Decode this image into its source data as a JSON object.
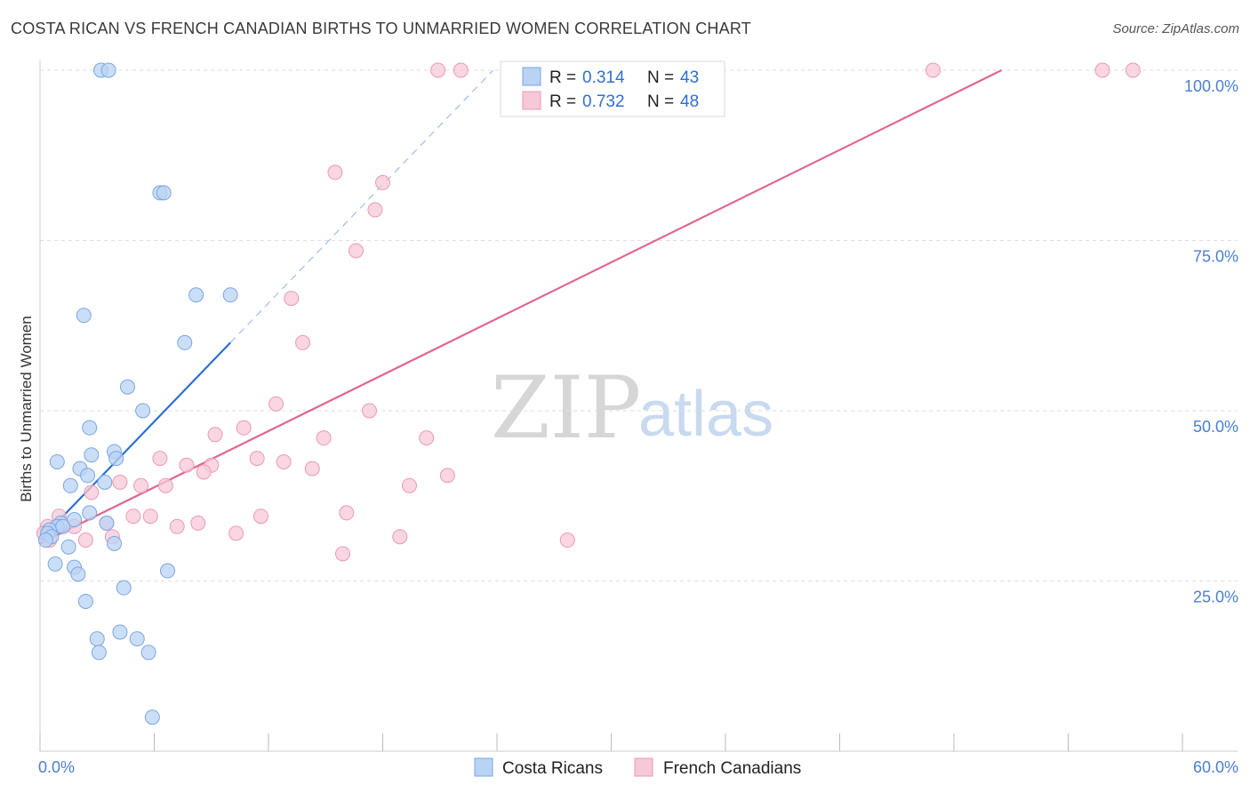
{
  "title": "COSTA RICAN VS FRENCH CANADIAN BIRTHS TO UNMARRIED WOMEN CORRELATION CHART",
  "source": "Source: ZipAtlas.com",
  "watermark": {
    "zip": "ZIP",
    "atlas": "atlas"
  },
  "colors": {
    "blue_fill": "#b9d3f5",
    "blue_stroke": "#7aa6e0",
    "blue_line": "#2c6fd1",
    "pink_fill": "#f7c8d7",
    "pink_stroke": "#e99ab5",
    "pink_line": "#e06690",
    "grid": "#dddddd",
    "axis_tick_text": "#4a7fd0"
  },
  "legend": {
    "rows": [
      {
        "r_label": "R =",
        "r_value": "0.314",
        "n_label": "N =",
        "n_value": "43",
        "series": "Costa Ricans"
      },
      {
        "r_label": "R =",
        "r_value": "0.732",
        "n_label": "N =",
        "n_value": "48",
        "series": "French Canadians"
      }
    ]
  },
  "bottom_legend": [
    "Costa Ricans",
    "French Canadians"
  ],
  "chart_data": {
    "type": "scatter",
    "title": "COSTA RICAN VS FRENCH CANADIAN BIRTHS TO UNMARRIED WOMEN CORRELATION CHART",
    "xlabel": "",
    "ylabel": "Births to Unmarried Women",
    "xlim": [
      0,
      60
    ],
    "ylim": [
      0,
      100
    ],
    "x_tick_labels": [
      {
        "value": 0,
        "label": "0.0%"
      },
      {
        "value": 60,
        "label": "60.0%"
      }
    ],
    "y_tick_labels": [
      {
        "value": 25,
        "label": "25.0%"
      },
      {
        "value": 50,
        "label": "50.0%"
      },
      {
        "value": 75,
        "label": "75.0%"
      },
      {
        "value": 100,
        "label": "100.0%"
      }
    ],
    "x_minor_ticks": [
      0,
      6,
      12,
      18,
      24,
      30,
      36,
      42,
      48,
      54,
      60
    ],
    "series": [
      {
        "name": "Costa Ricans",
        "r": 0.314,
        "n": 43,
        "points": [
          [
            3.2,
            100
          ],
          [
            3.6,
            100
          ],
          [
            6.3,
            82
          ],
          [
            6.5,
            82
          ],
          [
            8.2,
            67
          ],
          [
            10,
            67
          ],
          [
            2.3,
            64
          ],
          [
            7.6,
            60
          ],
          [
            4.6,
            53.5
          ],
          [
            5.4,
            50
          ],
          [
            2.6,
            47.5
          ],
          [
            3.9,
            44
          ],
          [
            0.9,
            42.5
          ],
          [
            2.7,
            43.5
          ],
          [
            4,
            43
          ],
          [
            2.1,
            41.5
          ],
          [
            2.5,
            40.5
          ],
          [
            3.4,
            39.5
          ],
          [
            1.6,
            39
          ],
          [
            1.1,
            33.5
          ],
          [
            2.6,
            35
          ],
          [
            1.8,
            34
          ],
          [
            3.5,
            33.5
          ],
          [
            0.9,
            33
          ],
          [
            0.5,
            32.5
          ],
          [
            1.2,
            33
          ],
          [
            0.4,
            32
          ],
          [
            0.6,
            31.5
          ],
          [
            0.3,
            31
          ],
          [
            1.5,
            30
          ],
          [
            3.9,
            30.5
          ],
          [
            0.8,
            27.5
          ],
          [
            1.8,
            27
          ],
          [
            2,
            26
          ],
          [
            6.7,
            26.5
          ],
          [
            4.4,
            24
          ],
          [
            2.4,
            22
          ],
          [
            3,
            16.5
          ],
          [
            4.2,
            17.5
          ],
          [
            5.1,
            16.5
          ],
          [
            3.1,
            14.5
          ],
          [
            5.7,
            14.5
          ],
          [
            5.9,
            5
          ]
        ]
      },
      {
        "name": "French Canadians",
        "r": 0.732,
        "n": 48,
        "points": [
          [
            20.9,
            100
          ],
          [
            22.1,
            100
          ],
          [
            46.9,
            100
          ],
          [
            55.8,
            100
          ],
          [
            57.4,
            100
          ],
          [
            15.5,
            85
          ],
          [
            18,
            83.5
          ],
          [
            17.6,
            79.5
          ],
          [
            16.6,
            73.5
          ],
          [
            13.2,
            66.5
          ],
          [
            13.8,
            60
          ],
          [
            12.4,
            51
          ],
          [
            17.3,
            50
          ],
          [
            9.2,
            46.5
          ],
          [
            10.7,
            47.5
          ],
          [
            14.9,
            46
          ],
          [
            20.3,
            46
          ],
          [
            6.3,
            43
          ],
          [
            11.4,
            43
          ],
          [
            12.8,
            42.5
          ],
          [
            7.7,
            42
          ],
          [
            9,
            42
          ],
          [
            8.6,
            41
          ],
          [
            14.3,
            41.5
          ],
          [
            21.4,
            40.5
          ],
          [
            4.2,
            39.5
          ],
          [
            5.3,
            39
          ],
          [
            6.6,
            39
          ],
          [
            19.4,
            39
          ],
          [
            2.7,
            38
          ],
          [
            4.9,
            34.5
          ],
          [
            5.8,
            34.5
          ],
          [
            11.6,
            34.5
          ],
          [
            16.1,
            35
          ],
          [
            1,
            34.5
          ],
          [
            3.5,
            33.5
          ],
          [
            7.2,
            33
          ],
          [
            8.3,
            33.5
          ],
          [
            1.8,
            33
          ],
          [
            0.4,
            33
          ],
          [
            0.2,
            32
          ],
          [
            3.8,
            31.5
          ],
          [
            2.4,
            31
          ],
          [
            10.3,
            32
          ],
          [
            18.9,
            31.5
          ],
          [
            27.7,
            31
          ],
          [
            15.9,
            29
          ],
          [
            0.5,
            31
          ]
        ]
      }
    ],
    "trend_lines": [
      {
        "series": "Costa Ricans",
        "solid": [
          [
            0,
            31
          ],
          [
            10,
            60
          ]
        ],
        "dashed": [
          [
            10,
            60
          ],
          [
            23.8,
            100
          ]
        ]
      },
      {
        "series": "French Canadians",
        "solid": [
          [
            0,
            30.5
          ],
          [
            50.5,
            100
          ]
        ]
      }
    ]
  }
}
